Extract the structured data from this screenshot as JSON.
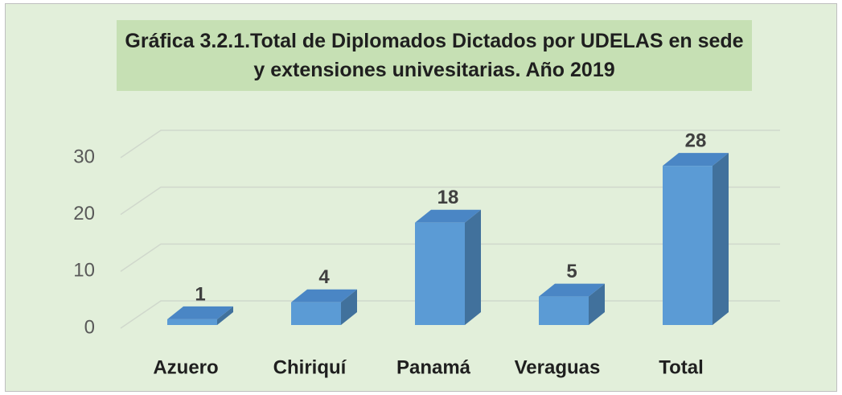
{
  "chart_data": {
    "type": "bar3d",
    "title": "Gráfica 3.2.1.Total de Diplomados Dictados por UDELAS en sede y extensiones univesitarias. Año 2019",
    "categories": [
      "Azuero",
      "Chiriquí",
      "Panamá",
      "Veraguas",
      "Total"
    ],
    "values": [
      1,
      4,
      18,
      5,
      28
    ],
    "color": "#5b9bd5",
    "ylim": [
      0,
      30
    ],
    "yticks": [
      0,
      10,
      20,
      30
    ],
    "grid": true
  }
}
